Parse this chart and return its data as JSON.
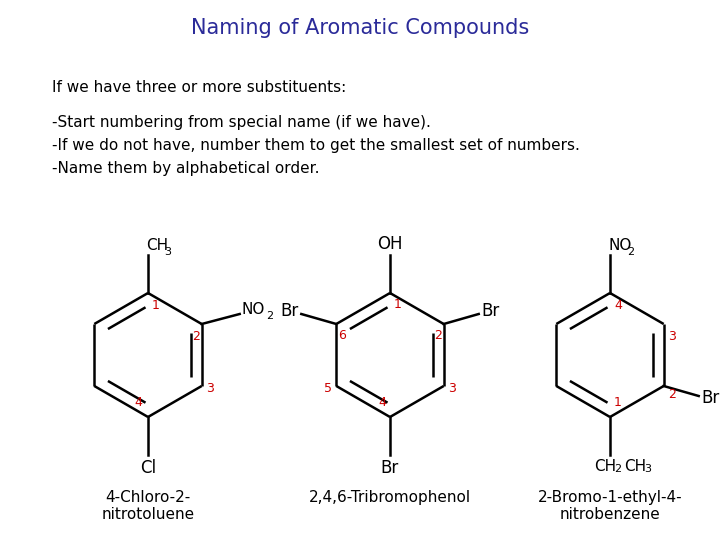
{
  "title": "Naming of Aromatic Compounds",
  "title_color": "#2B2B99",
  "title_fontsize": 15,
  "background_color": "#FFFFFF",
  "text_color": "#000000",
  "line1": "If we have three or more substituents:",
  "line2": "-Start numbering from special name (if we have).",
  "line3": "-If we do not have, number them to get the smallest set of numbers.",
  "line4": "-Name them by alphabetical order.",
  "label1": "4-Chloro-2-\nnitrotoluene",
  "label2": "2,4,6-Tribromophenol",
  "label3": "2-Bromo-1-ethyl-4-\nnitrobenzene",
  "red": "#CC0000",
  "black": "#000000"
}
